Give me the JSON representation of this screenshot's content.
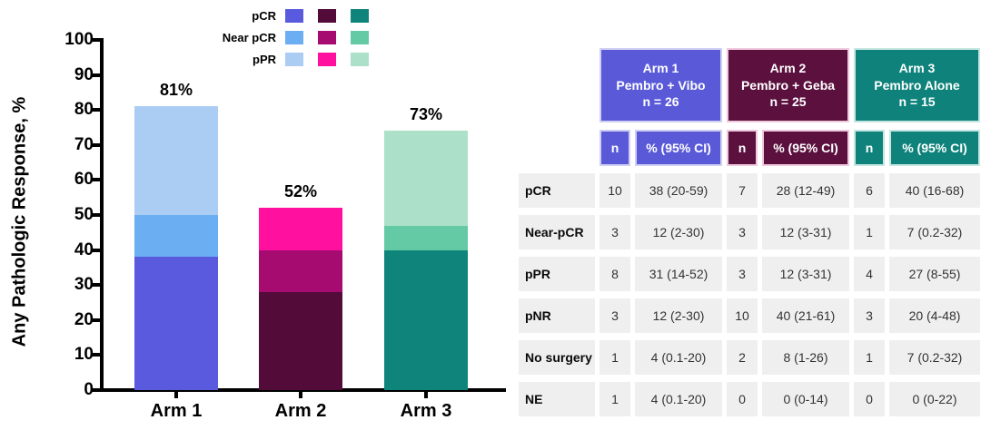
{
  "chart_data": {
    "type": "bar",
    "stacked": true,
    "title": "",
    "xlabel": "",
    "ylabel": "Any Pathologic Response, %",
    "ylim": [
      0,
      100
    ],
    "yticks": [
      0,
      10,
      20,
      30,
      40,
      50,
      60,
      70,
      80,
      90,
      100
    ],
    "grid": false,
    "legend_position": "top-left",
    "categories": [
      "Arm 1",
      "Arm 2",
      "Arm 3"
    ],
    "series": [
      {
        "name": "pCR",
        "values": [
          38,
          28,
          40
        ],
        "colors": [
          "#5A5ADF",
          "#530B3A",
          "#0E847B"
        ]
      },
      {
        "name": "Near pCR",
        "values": [
          12,
          12,
          7
        ],
        "colors": [
          "#6BAEF2",
          "#A60B70",
          "#63CAA5"
        ]
      },
      {
        "name": "pPR",
        "values": [
          31,
          12,
          27
        ],
        "colors": [
          "#ABCDF4",
          "#FF109E",
          "#ACE0C9"
        ]
      }
    ],
    "total_labels": [
      "81%",
      "52%",
      "73%"
    ]
  },
  "table": {
    "arms": [
      {
        "lines": [
          "Arm 1",
          "Pembro + Vibo",
          "n = 26"
        ],
        "color": "#5A5AD9",
        "tint": "#CFCFF3"
      },
      {
        "lines": [
          "Arm 2",
          "Pembro + Geba",
          "n = 25"
        ],
        "color": "#5B103E",
        "tint": "#EFC9DD"
      },
      {
        "lines": [
          "Arm 3",
          "Pembro Alone",
          "n = 15"
        ],
        "color": "#0F837B",
        "tint": "#C5E6E1"
      }
    ],
    "subheader": {
      "n": "n",
      "ci": "% (95% CI)"
    },
    "rows": [
      {
        "label": "pCR",
        "cells": [
          "10",
          "38 (20-59)",
          "7",
          "28 (12-49)",
          "6",
          "40 (16-68)"
        ]
      },
      {
        "label": "Near-pCR",
        "cells": [
          "3",
          "12 (2-30)",
          "3",
          "12 (3-31)",
          "1",
          "7 (0.2-32)"
        ]
      },
      {
        "label": "pPR",
        "cells": [
          "8",
          "31 (14-52)",
          "3",
          "12 (3-31)",
          "4",
          "27 (8-55)"
        ]
      },
      {
        "label": "pNR",
        "cells": [
          "3",
          "12 (2-30)",
          "10",
          "40 (21-61)",
          "3",
          "20 (4-48)"
        ]
      },
      {
        "label": "No surgery",
        "cells": [
          "1",
          "4 (0.1-20)",
          "2",
          "8 (1-26)",
          "1",
          "7 (0.2-32)"
        ]
      },
      {
        "label": "NE",
        "cells": [
          "1",
          "4 (0.1-20)",
          "0",
          "0 (0-14)",
          "0",
          "0 (0-22)"
        ]
      }
    ]
  }
}
